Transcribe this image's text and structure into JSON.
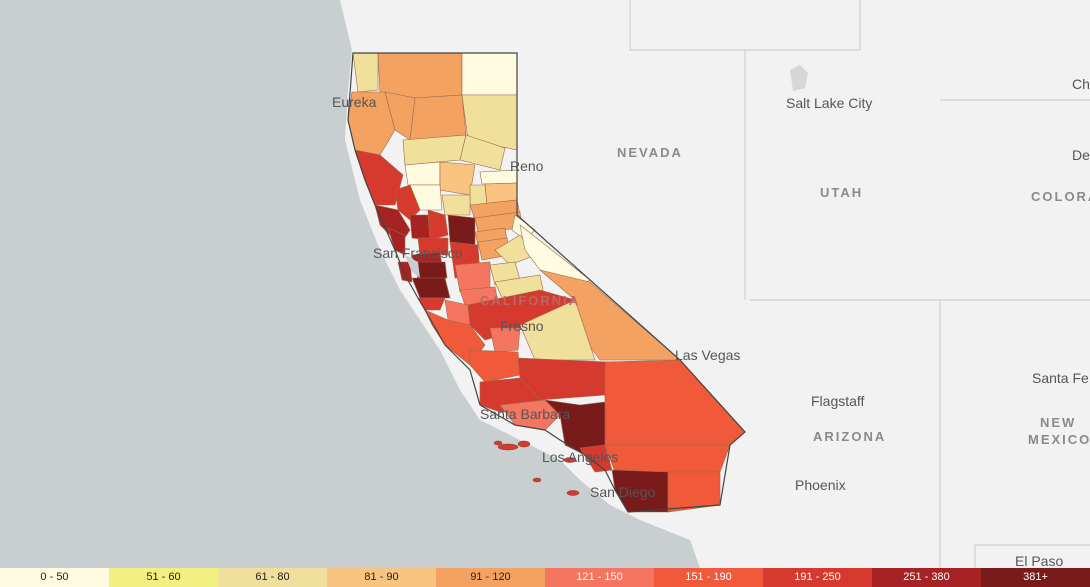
{
  "places": {
    "eureka": "Eureka",
    "reno": "Reno",
    "san_francisco": "San Francisco",
    "fresno": "Fresno",
    "las_vegas": "Las Vegas",
    "santa_barbara": "Santa Barbara",
    "los_angeles": "Los Angeles",
    "san_diego": "San Diego",
    "salt_lake_city": "Salt Lake City",
    "flagstaff": "Flagstaff",
    "phoenix": "Phoenix",
    "santa_fe": "Santa Fe",
    "el_paso": "El Paso",
    "ch": "Ch",
    "de": "De"
  },
  "states": {
    "nevada": "NEVADA",
    "utah": "UTAH",
    "california": "CALIFORNIA",
    "arizona": "ARIZONA",
    "colorado": "COLORA",
    "new_mexico_line1": "NEW",
    "new_mexico_line2": "MEXICO"
  },
  "legend": [
    {
      "label": "0 - 50",
      "color": "#fffbe0"
    },
    {
      "label": "51 - 60",
      "color": "#f2ee7f"
    },
    {
      "label": "61 - 80",
      "color": "#f1df9c"
    },
    {
      "label": "81 - 90",
      "color": "#f8c47f"
    },
    {
      "label": "91 - 120",
      "color": "#f4a261"
    },
    {
      "label": "121 - 150",
      "color": "#f47560"
    },
    {
      "label": "151 - 190",
      "color": "#f05a3b"
    },
    {
      "label": "191 - 250",
      "color": "#d63a2e"
    },
    {
      "label": "251 - 380",
      "color": "#a72222"
    },
    {
      "label": "381+",
      "color": "#7a1b1b"
    }
  ]
}
